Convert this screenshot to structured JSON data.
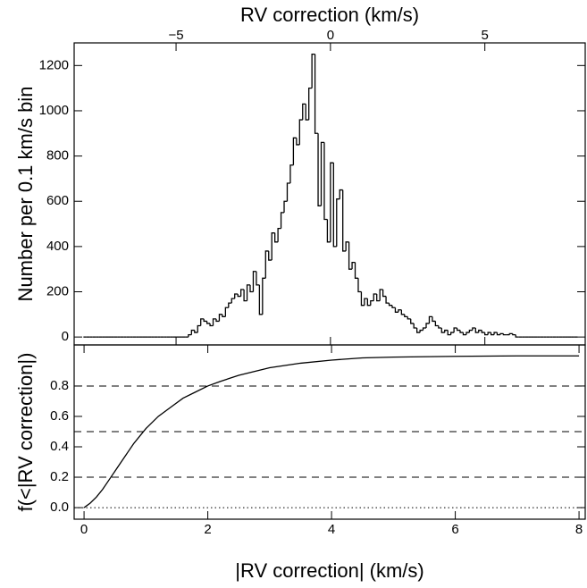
{
  "chart_data": [
    {
      "type": "histogram",
      "xlabel": "RV correction (km/s)",
      "ylabel": "Number per 0.1 km/s bin",
      "xaxis": "top",
      "color": "#000000",
      "xlim": [
        -8.3,
        8.25
      ],
      "ylim": [
        -35,
        1300
      ],
      "xticks": [
        {
          "value": -5,
          "label": "−5"
        },
        0,
        5
      ],
      "yticks": [
        0,
        200,
        400,
        600,
        800,
        1000,
        1200
      ],
      "bins": [
        -8.0,
        -7.9,
        -7.8,
        -7.7,
        -7.6,
        -7.5,
        -7.4,
        -7.3,
        -7.2,
        -7.1,
        -7.0,
        -6.9,
        -6.8,
        -6.7,
        -6.6,
        -6.5,
        -6.4,
        -6.3,
        -6.2,
        -6.1,
        -6.0,
        -5.9,
        -5.8,
        -5.7,
        -5.6,
        -5.5,
        -5.4,
        -5.3,
        -5.2,
        -5.1,
        -5.0,
        -4.9,
        -4.8,
        -4.7,
        -4.6,
        -4.5,
        -4.4,
        -4.3,
        -4.2,
        -4.1,
        -4.0,
        -3.9,
        -3.8,
        -3.7,
        -3.6,
        -3.5,
        -3.4,
        -3.3,
        -3.2,
        -3.1,
        -3.0,
        -2.9,
        -2.8,
        -2.7,
        -2.6,
        -2.5,
        -2.4,
        -2.3,
        -2.2,
        -2.1,
        -2.0,
        -1.9,
        -1.8,
        -1.7,
        -1.6,
        -1.5,
        -1.4,
        -1.3,
        -1.2,
        -1.1,
        -1.0,
        -0.9,
        -0.8,
        -0.7,
        -0.6,
        -0.5,
        -0.4,
        -0.3,
        -0.2,
        -0.1,
        0.0,
        0.1,
        0.2,
        0.3,
        0.4,
        0.5,
        0.6,
        0.7,
        0.8,
        0.9,
        1.0,
        1.1,
        1.2,
        1.3,
        1.4,
        1.5,
        1.6,
        1.7,
        1.8,
        1.9,
        2.0,
        2.1,
        2.2,
        2.3,
        2.4,
        2.5,
        2.6,
        2.7,
        2.8,
        2.9,
        3.0,
        3.1,
        3.2,
        3.3,
        3.4,
        3.5,
        3.6,
        3.7,
        3.8,
        3.9,
        4.0,
        4.1,
        4.2,
        4.3,
        4.4,
        4.5,
        4.6,
        4.7,
        4.8,
        4.9,
        5.0,
        5.1,
        5.2,
        5.3,
        5.4,
        5.5,
        5.6,
        5.7,
        5.8,
        5.9,
        6.0,
        6.1,
        6.2,
        6.3,
        6.4,
        6.5,
        6.6,
        6.7,
        6.8,
        6.9,
        7.0,
        7.1,
        7.2,
        7.3,
        7.4,
        7.5,
        7.6,
        7.7,
        7.8,
        7.9,
        8.0
      ],
      "values": [
        0,
        0,
        0,
        0,
        0,
        0,
        0,
        0,
        0,
        0,
        0,
        0,
        0,
        0,
        0,
        0,
        0,
        0,
        0,
        0,
        0,
        0,
        0,
        0,
        0,
        0,
        0,
        0,
        0,
        0,
        0,
        0,
        0,
        0,
        10,
        30,
        20,
        50,
        80,
        70,
        60,
        50,
        80,
        70,
        100,
        90,
        130,
        150,
        170,
        190,
        180,
        210,
        160,
        230,
        200,
        290,
        230,
        100,
        260,
        380,
        340,
        460,
        420,
        480,
        550,
        600,
        680,
        760,
        880,
        850,
        960,
        1030,
        960,
        1100,
        1250,
        900,
        580,
        860,
        520,
        420,
        770,
        400,
        610,
        650,
        380,
        420,
        300,
        330,
        260,
        200,
        140,
        170,
        140,
        160,
        190,
        160,
        210,
        180,
        150,
        140,
        130,
        110,
        120,
        100,
        90,
        80,
        60,
        40,
        20,
        30,
        40,
        60,
        90,
        70,
        50,
        40,
        20,
        30,
        10,
        20,
        40,
        30,
        20,
        10,
        20,
        30,
        40,
        20,
        30,
        20,
        10,
        20,
        10,
        20,
        10,
        15,
        10,
        10,
        15,
        10,
        0,
        0,
        0,
        0,
        0,
        0,
        0,
        0,
        0,
        0,
        0,
        0,
        0,
        0,
        0,
        0,
        0,
        0,
        0,
        0
      ]
    },
    {
      "type": "line",
      "xlabel": "|RV correction| (km/s)",
      "ylabel": "f(<|RV correction|)",
      "xaxis": "bottom",
      "color": "#000000",
      "xlim": [
        -0.16,
        8.1
      ],
      "ylim": [
        -0.076,
        1.07
      ],
      "xticks": [
        0,
        2,
        4,
        6,
        8
      ],
      "yticks": [
        {
          "value": 0,
          "label": "0.0"
        },
        0.2,
        0.4,
        0.6,
        0.8
      ],
      "hlines": [
        {
          "value": 0,
          "style": "dotted"
        },
        {
          "value": 0.2,
          "style": "dashed"
        },
        {
          "value": 0.5,
          "style": "dashed"
        },
        {
          "value": 0.8,
          "style": "dashed"
        }
      ],
      "x": [
        0,
        0.1,
        0.2,
        0.3,
        0.4,
        0.5,
        0.6,
        0.7,
        0.8,
        0.9,
        1.0,
        1.2,
        1.4,
        1.6,
        1.8,
        2.0,
        2.2,
        2.5,
        3.0,
        3.5,
        4.0,
        4.5,
        5,
        6,
        7,
        8
      ],
      "values": [
        0,
        0.03,
        0.07,
        0.12,
        0.18,
        0.24,
        0.3,
        0.36,
        0.42,
        0.47,
        0.52,
        0.6,
        0.66,
        0.72,
        0.76,
        0.8,
        0.83,
        0.87,
        0.92,
        0.95,
        0.97,
        0.985,
        0.99,
        0.995,
        0.998,
        0.998
      ]
    }
  ]
}
